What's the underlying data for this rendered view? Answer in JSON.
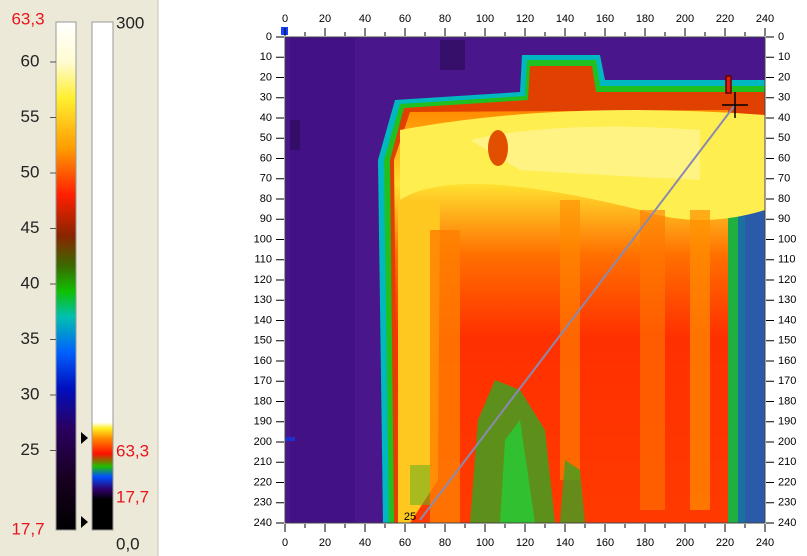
{
  "left_scale": {
    "max_label": "63,3",
    "ticks": [
      "60",
      "55",
      "50",
      "45",
      "40",
      "35",
      "30",
      "25"
    ],
    "min_label": "17,7"
  },
  "range_bar": {
    "top_label": "300",
    "high_label": "63,3",
    "low_label": "17,7",
    "bottom_label": "0,0"
  },
  "image": {
    "x_ticks_top": [
      "0",
      "20",
      "40",
      "60",
      "80",
      "100",
      "120",
      "140",
      "160",
      "180",
      "200",
      "220",
      "240"
    ],
    "x_ticks_bottom": [
      "0",
      "20",
      "40",
      "60",
      "80",
      "100",
      "120",
      "140",
      "160",
      "180",
      "200",
      "220",
      "240"
    ],
    "y_ticks_left": [
      "0",
      "10",
      "20",
      "30",
      "40",
      "50",
      "60",
      "70",
      "80",
      "90",
      "100",
      "110",
      "120",
      "130",
      "140",
      "150",
      "160",
      "170",
      "180",
      "190",
      "200",
      "210",
      "220",
      "230",
      "240"
    ],
    "y_ticks_right": [
      "0",
      "10",
      "20",
      "30",
      "40",
      "50",
      "60",
      "70",
      "80",
      "90",
      "100",
      "110",
      "120",
      "130",
      "140",
      "150",
      "160",
      "170",
      "180",
      "190",
      "200",
      "210",
      "220",
      "230",
      "240"
    ],
    "cursor_label": "25"
  }
}
